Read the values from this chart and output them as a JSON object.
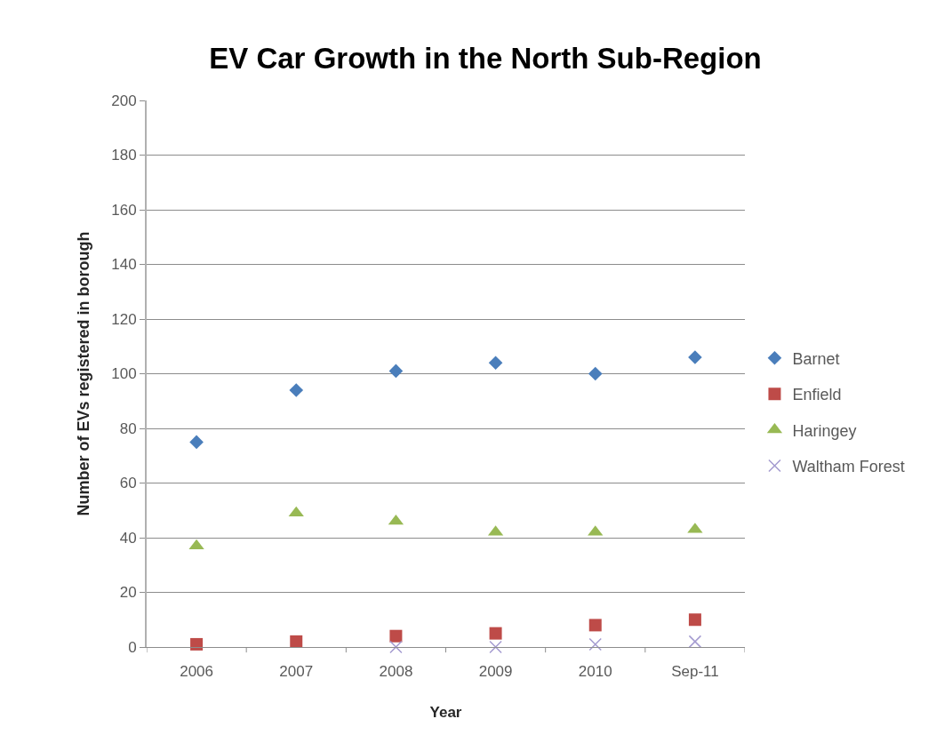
{
  "chart_data": {
    "type": "scatter",
    "title": "EV Car Growth in the North Sub-Region",
    "xlabel": "Year",
    "ylabel": "Number of EVs registered in borough",
    "categories": [
      "2006",
      "2007",
      "2008",
      "2009",
      "2010",
      "Sep-11"
    ],
    "series": [
      {
        "name": "Barnet",
        "color": "#4a7ebb",
        "marker": "diamond",
        "values": [
          75,
          94,
          101,
          104,
          100,
          106
        ]
      },
      {
        "name": "Enfield",
        "color": "#be4b48",
        "marker": "square",
        "values": [
          1,
          2,
          4,
          5,
          8,
          10
        ]
      },
      {
        "name": "Haringey",
        "color": "#98b954",
        "marker": "triangle",
        "values": [
          37,
          49,
          46,
          42,
          42,
          43
        ]
      },
      {
        "name": "Waltham Forest",
        "color": "#a49bd0",
        "marker": "cross",
        "values": [
          null,
          null,
          0,
          0,
          1,
          2
        ]
      }
    ],
    "ylim": [
      0,
      200
    ],
    "yticks": [
      0,
      20,
      40,
      60,
      80,
      100,
      120,
      140,
      160,
      180,
      200
    ],
    "grid": "y",
    "legend": "right"
  }
}
